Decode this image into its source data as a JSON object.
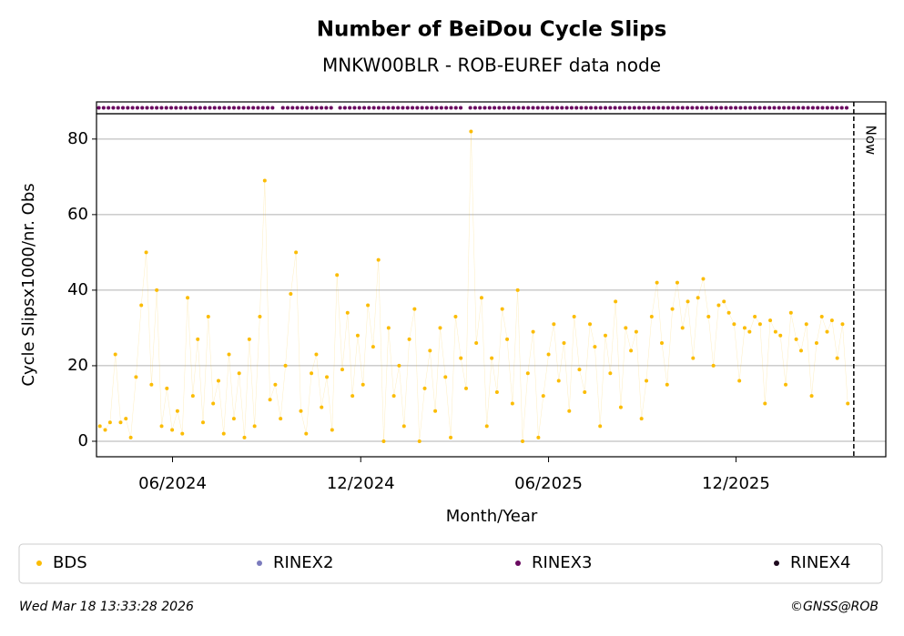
{
  "chart_data": {
    "type": "scatter",
    "title": "Number of BeiDou Cycle Slips",
    "subtitle": "MNKW00BLR - ROB-EUREF data node",
    "x_label": "Month/Year",
    "y_label": "Cycle Slipsx1000/nr. Obs",
    "xlim": [
      2024.213,
      2026.31
    ],
    "ylim": [
      -4.1,
      86.7
    ],
    "xticks": [
      {
        "value": 2024.415,
        "label": "06/2024"
      },
      {
        "value": 2024.915,
        "label": "12/2024"
      },
      {
        "value": 2025.414,
        "label": "06/2025"
      },
      {
        "value": 2025.912,
        "label": "12/2025"
      }
    ],
    "yticks": [
      0,
      20,
      40,
      60,
      80
    ],
    "grid": true,
    "now_line": {
      "x": 2026.225,
      "label": "Now"
    },
    "legend": "bottom",
    "series": [
      {
        "name": "BDS",
        "color": "#fbbc04",
        "x": [
          2024.222,
          2024.236,
          2024.249,
          2024.263,
          2024.277,
          2024.291,
          2024.304,
          2024.318,
          2024.332,
          2024.345,
          2024.359,
          2024.373,
          2024.386,
          2024.4,
          2024.414,
          2024.428,
          2024.441,
          2024.455,
          2024.469,
          2024.482,
          2024.496,
          2024.51,
          2024.523,
          2024.537,
          2024.551,
          2024.565,
          2024.578,
          2024.592,
          2024.606,
          2024.619,
          2024.633,
          2024.647,
          2024.66,
          2024.674,
          2024.688,
          2024.702,
          2024.715,
          2024.729,
          2024.743,
          2024.756,
          2024.77,
          2024.784,
          2024.797,
          2024.811,
          2024.825,
          2024.839,
          2024.852,
          2024.866,
          2024.88,
          2024.893,
          2024.907,
          2024.921,
          2024.934,
          2024.948,
          2024.962,
          2024.976,
          2024.989,
          2025.003,
          2025.017,
          2025.03,
          2025.044,
          2025.058,
          2025.071,
          2025.085,
          2025.099,
          2025.113,
          2025.126,
          2025.14,
          2025.154,
          2025.167,
          2025.181,
          2025.195,
          2025.208,
          2025.222,
          2025.236,
          2025.25,
          2025.263,
          2025.277,
          2025.291,
          2025.304,
          2025.318,
          2025.332,
          2025.345,
          2025.359,
          2025.373,
          2025.387,
          2025.4,
          2025.414,
          2025.428,
          2025.441,
          2025.455,
          2025.469,
          2025.482,
          2025.496,
          2025.51,
          2025.524,
          2025.537,
          2025.551,
          2025.565,
          2025.578,
          2025.592,
          2025.606,
          2025.619,
          2025.633,
          2025.647,
          2025.661,
          2025.674,
          2025.688,
          2025.702,
          2025.715,
          2025.729,
          2025.743,
          2025.756,
          2025.77,
          2025.784,
          2025.798,
          2025.811,
          2025.825,
          2025.839,
          2025.852,
          2025.866,
          2025.88,
          2025.893,
          2025.907,
          2025.921,
          2025.935,
          2025.948,
          2025.962,
          2025.976,
          2025.989,
          2026.003,
          2026.017,
          2026.03,
          2026.044,
          2026.058,
          2026.072,
          2026.085,
          2026.099,
          2026.113,
          2026.126,
          2026.14,
          2026.154,
          2026.167,
          2026.181,
          2026.195,
          2026.209
        ],
        "values": [
          4,
          3,
          5,
          23,
          5,
          6,
          1,
          17,
          36,
          50,
          15,
          40,
          4,
          14,
          3,
          8,
          2,
          38,
          12,
          27,
          5,
          33,
          10,
          16,
          2,
          23,
          6,
          18,
          1,
          27,
          4,
          33,
          69,
          11,
          15,
          6,
          20,
          39,
          50,
          8,
          2,
          18,
          23,
          9,
          17,
          3,
          44,
          19,
          34,
          12,
          28,
          15,
          36,
          25,
          48,
          0,
          30,
          12,
          20,
          4,
          27,
          35,
          0,
          14,
          24,
          8,
          30,
          17,
          1,
          33,
          22,
          14,
          82,
          26,
          38,
          4,
          22,
          13,
          35,
          27,
          10,
          40,
          0,
          18,
          29,
          1,
          12,
          23,
          31,
          16,
          26,
          8,
          33,
          19,
          13,
          31,
          25,
          4,
          28,
          18,
          37,
          9,
          30,
          24,
          29,
          6,
          16,
          33,
          42,
          26,
          15,
          35,
          42,
          30,
          37,
          22,
          38,
          43,
          33,
          20,
          36,
          37,
          34,
          31,
          16,
          30,
          29,
          33,
          31,
          10,
          32,
          29,
          28,
          15,
          34,
          27,
          24,
          31,
          12,
          26,
          33,
          29,
          32,
          22,
          31,
          10
        ]
      },
      {
        "name": "RINEX2",
        "color": "#7b7bbd"
      },
      {
        "name": "RINEX3",
        "color": "#6a0a60",
        "x_ranges": [
          [
            2024.219,
            2024.425
          ],
          [
            2024.437,
            2024.693
          ],
          [
            2024.708,
            2024.848
          ],
          [
            2024.86,
            2025.191
          ],
          [
            2025.206,
            2026.207
          ]
        ]
      },
      {
        "name": "RINEX4",
        "color": "#1e0a1e"
      }
    ],
    "footer": {
      "left": "Wed Mar 18 13:33:28 2026",
      "right": "©GNSS@ROB"
    }
  }
}
